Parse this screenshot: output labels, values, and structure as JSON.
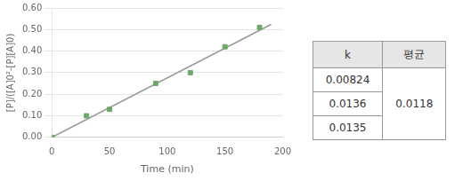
{
  "chart_data": {
    "type": "scatter",
    "xlabel": "Time (min)",
    "ylabel": "[P]/([A]0²-[P][A]0)",
    "series": [
      {
        "type": "scatter",
        "color": "#6aaa6a",
        "marker": "square",
        "x": [
          0,
          30,
          50,
          90,
          120,
          150,
          180
        ],
        "values": [
          0.0,
          0.1,
          0.13,
          0.25,
          0.3,
          0.42,
          0.51
        ]
      },
      {
        "type": "line",
        "color": "#999999",
        "x": [
          0,
          190
        ],
        "values": [
          0.0,
          0.5239108910891089
        ]
      }
    ],
    "xlim": [
      0,
      200
    ],
    "ylim": [
      0.0,
      0.6
    ],
    "xticks": [
      0,
      50,
      100,
      150,
      200
    ],
    "yticks": [
      {
        "value": 0.0,
        "label": "0.00"
      },
      {
        "value": 0.1,
        "label": "0.10"
      },
      {
        "value": 0.2,
        "label": "0.20"
      },
      {
        "value": 0.3,
        "label": "0.30"
      },
      {
        "value": 0.4,
        "label": "0.40"
      },
      {
        "value": 0.5,
        "label": "0.50"
      },
      {
        "value": 0.6,
        "label": "0.60"
      }
    ],
    "grid": "y",
    "table": {
      "headers": [
        "k",
        "평균"
      ],
      "k_values": [
        "0.00824",
        "0.0136",
        "0.0135"
      ],
      "average": "0.0118"
    }
  }
}
